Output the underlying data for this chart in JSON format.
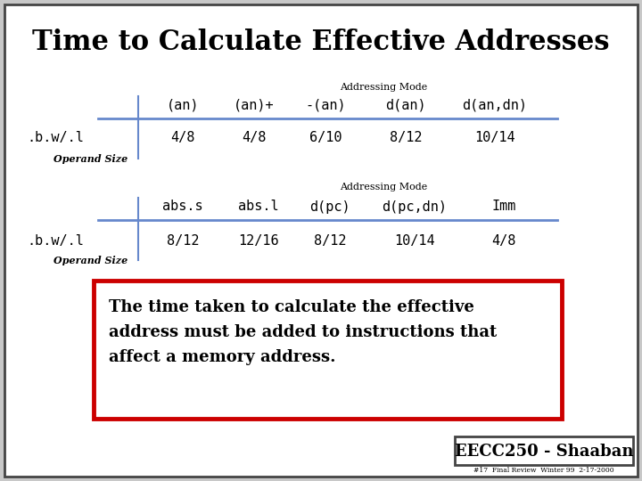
{
  "title": "Time to Calculate Effective Addresses",
  "bg_color": "#c8c8c8",
  "slide_bg": "#ffffff",
  "table1_header_label": "Addressing Mode",
  "table1_cols": [
    "(an)",
    "(an)+",
    "-(an)",
    "d(an)",
    "d(an,dn)"
  ],
  "table1_row_label": ".b.w/.l",
  "table1_operand_label": "Operand Size",
  "table1_values": [
    "4/8",
    "4/8",
    "6/10",
    "8/12",
    "10/14"
  ],
  "table2_header_label": "Addressing Mode",
  "table2_cols": [
    "abs.s",
    "abs.l",
    "d(pc)",
    "d(pc,dn)",
    "Imm"
  ],
  "table2_row_label": ".b.w/.l",
  "table2_operand_label": "Operand Size",
  "table2_values": [
    "8/12",
    "12/16",
    "8/12",
    "10/14",
    "4/8"
  ],
  "box_text_lines": [
    "The time taken to calculate the effective",
    "address must be added to instructions that",
    "affect a memory address."
  ],
  "box_border_color": "#cc0000",
  "footer_text": "EECC250 - Shaaban",
  "footer_sub": "#17  Final Review  Winter 99  2-17-2000",
  "outer_border_color": "#444444",
  "title_color": "#000000",
  "table_text_color": "#000000",
  "line_color": "#6688cc",
  "mono_font": "monospace",
  "serif_font": "serif"
}
